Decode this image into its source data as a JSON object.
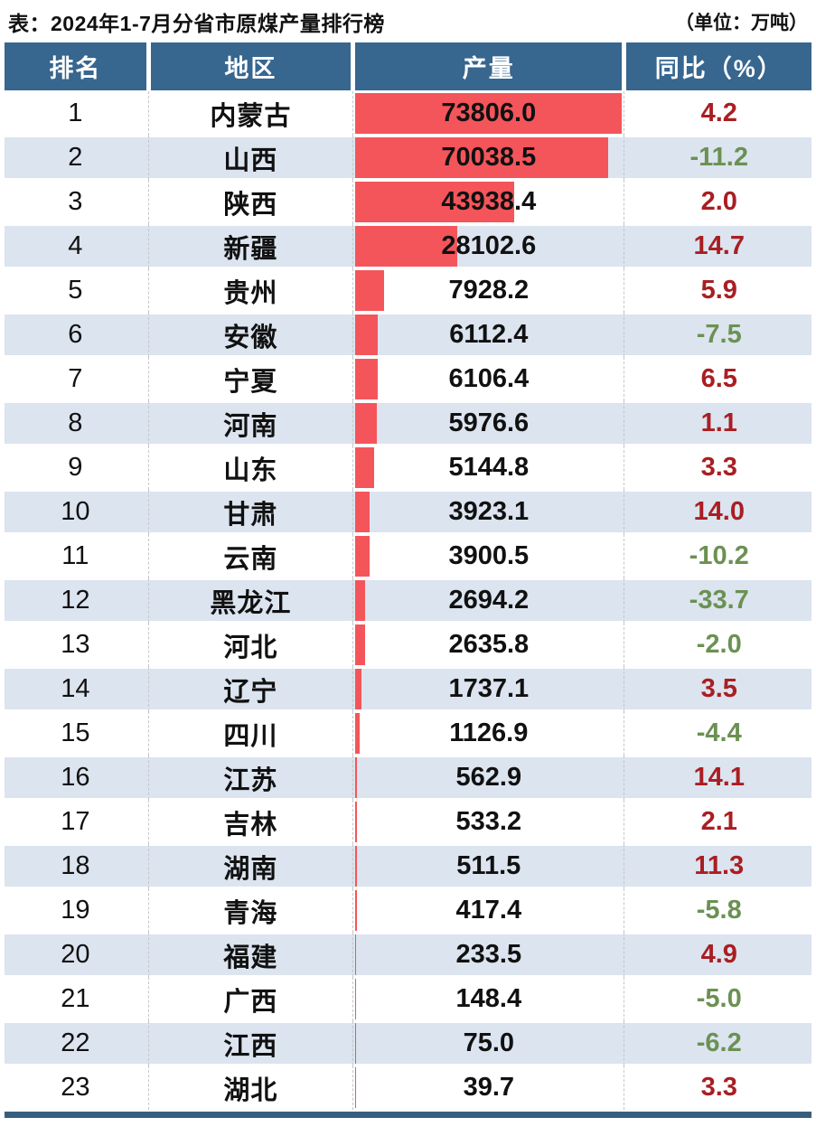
{
  "title": "表：2024年1-7月分省市原煤产量排行榜",
  "unit_label": "（单位：万吨）",
  "columns": {
    "rank": "排名",
    "region": "地区",
    "production": "产量",
    "yoy": "同比（%）"
  },
  "colors": {
    "header_bg": "#37668F",
    "footer_bar": "#375E7D",
    "row_alt_bg": "#DBE4EF",
    "bar": "#F4555A",
    "yoy_positive": "#A91E22",
    "yoy_negative": "#6B9152"
  },
  "chart_data": {
    "type": "bar",
    "title": "表：2024年1-7月分省市原煤产量排行榜",
    "unit": "万吨",
    "orientation": "horizontal",
    "max_value": 73806.0,
    "columns": [
      "排名",
      "地区",
      "产量",
      "同比（%）"
    ],
    "rows": [
      {
        "rank": "1",
        "region": "内蒙古",
        "production": "73806.0",
        "yoy": "4.2"
      },
      {
        "rank": "2",
        "region": "山西",
        "production": "70038.5",
        "yoy": "-11.2"
      },
      {
        "rank": "3",
        "region": "陕西",
        "production": "43938.4",
        "yoy": "2.0"
      },
      {
        "rank": "4",
        "region": "新疆",
        "production": "28102.6",
        "yoy": "14.7"
      },
      {
        "rank": "5",
        "region": "贵州",
        "production": "7928.2",
        "yoy": "5.9"
      },
      {
        "rank": "6",
        "region": "安徽",
        "production": "6112.4",
        "yoy": "-7.5"
      },
      {
        "rank": "7",
        "region": "宁夏",
        "production": "6106.4",
        "yoy": "6.5"
      },
      {
        "rank": "8",
        "region": "河南",
        "production": "5976.6",
        "yoy": "1.1"
      },
      {
        "rank": "9",
        "region": "山东",
        "production": "5144.8",
        "yoy": "3.3"
      },
      {
        "rank": "10",
        "region": "甘肃",
        "production": "3923.1",
        "yoy": "14.0"
      },
      {
        "rank": "11",
        "region": "云南",
        "production": "3900.5",
        "yoy": "-10.2"
      },
      {
        "rank": "12",
        "region": "黑龙江",
        "production": "2694.2",
        "yoy": "-33.7"
      },
      {
        "rank": "13",
        "region": "河北",
        "production": "2635.8",
        "yoy": "-2.0"
      },
      {
        "rank": "14",
        "region": "辽宁",
        "production": "1737.1",
        "yoy": "3.5"
      },
      {
        "rank": "15",
        "region": "四川",
        "production": "1126.9",
        "yoy": "-4.4"
      },
      {
        "rank": "16",
        "region": "江苏",
        "production": "562.9",
        "yoy": "14.1"
      },
      {
        "rank": "17",
        "region": "吉林",
        "production": "533.2",
        "yoy": "2.1"
      },
      {
        "rank": "18",
        "region": "湖南",
        "production": "511.5",
        "yoy": "11.3"
      },
      {
        "rank": "19",
        "region": "青海",
        "production": "417.4",
        "yoy": "-5.8"
      },
      {
        "rank": "20",
        "region": "福建",
        "production": "233.5",
        "yoy": "4.9"
      },
      {
        "rank": "21",
        "region": "广西",
        "production": "148.4",
        "yoy": "-5.0"
      },
      {
        "rank": "22",
        "region": "江西",
        "production": "75.0",
        "yoy": "-6.2"
      },
      {
        "rank": "23",
        "region": "湖北",
        "production": "39.7",
        "yoy": "3.3"
      }
    ]
  }
}
